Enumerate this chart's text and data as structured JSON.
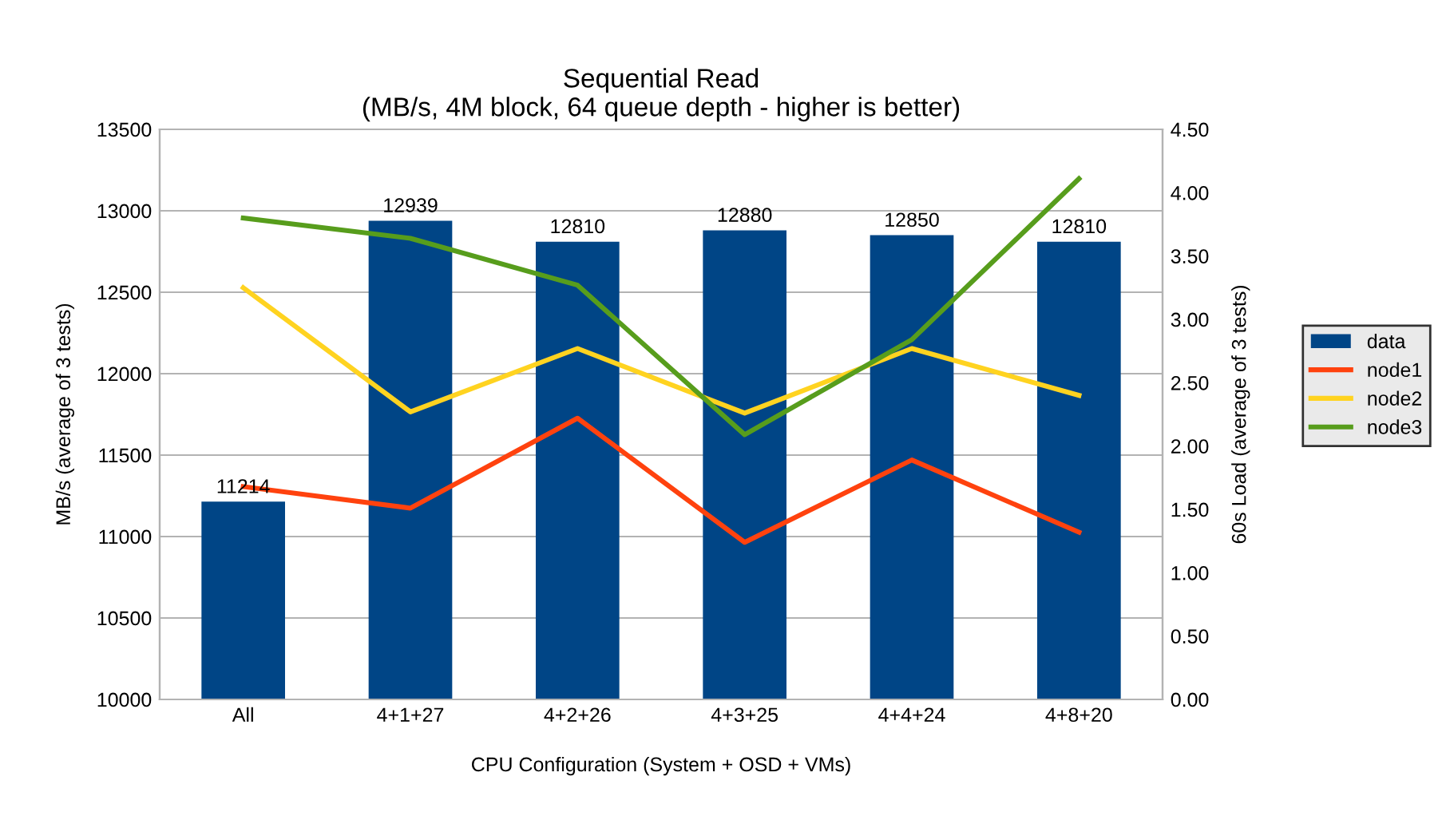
{
  "chart_data": {
    "type": "bar",
    "title": "Sequential Read\n(MB/s, 4M block, 64 queue depth - higher is better)",
    "xlabel": "CPU Configuration (System + OSD + VMs)",
    "ylabel": "MB/s (average of 3 tests)",
    "y2label": "60s Load (average of 3 tests)",
    "categories": [
      "All",
      "4+1+27",
      "4+2+26",
      "4+3+25",
      "4+4+24",
      "4+8+20"
    ],
    "series": [
      {
        "name": "data",
        "color": "#004586",
        "values": [
          11214,
          12939,
          12810,
          12880,
          12850,
          12810
        ],
        "value_labels": [
          "11214",
          "12939",
          "12810",
          "12880",
          "12850",
          "12810"
        ]
      },
      {
        "name": "node1",
        "type": "line",
        "axis": "y2",
        "color": "#ff420e",
        "values": [
          1.68,
          1.51,
          2.22,
          1.24,
          1.89,
          1.32
        ]
      },
      {
        "name": "node2",
        "type": "line",
        "axis": "y2",
        "color": "#ffd320",
        "values": [
          3.25,
          2.27,
          2.77,
          2.26,
          2.77,
          2.4
        ]
      },
      {
        "name": "node3",
        "type": "line",
        "axis": "y2",
        "color": "#579d1c",
        "values": [
          3.8,
          3.64,
          3.27,
          2.09,
          2.84,
          4.11
        ]
      }
    ],
    "ylim": [
      10000,
      13500
    ],
    "yticks": [
      10000,
      10500,
      11000,
      11500,
      12000,
      12500,
      13000,
      13500
    ],
    "y2lim": [
      0,
      4.5
    ],
    "y2ticks": [
      {
        "value": 0,
        "label": "0.00"
      },
      {
        "value": 0.5,
        "label": "0.50"
      },
      {
        "value": 1,
        "label": "1.00"
      },
      {
        "value": 1.5,
        "label": "1.50"
      },
      {
        "value": 2,
        "label": "2.00"
      },
      {
        "value": 2.5,
        "label": "2.50"
      },
      {
        "value": 3,
        "label": "3.00"
      },
      {
        "value": 3.5,
        "label": "3.50"
      },
      {
        "value": 4,
        "label": "4.00"
      },
      {
        "value": 4.5,
        "label": "4.50"
      }
    ],
    "grid": "y",
    "legend": "right"
  }
}
